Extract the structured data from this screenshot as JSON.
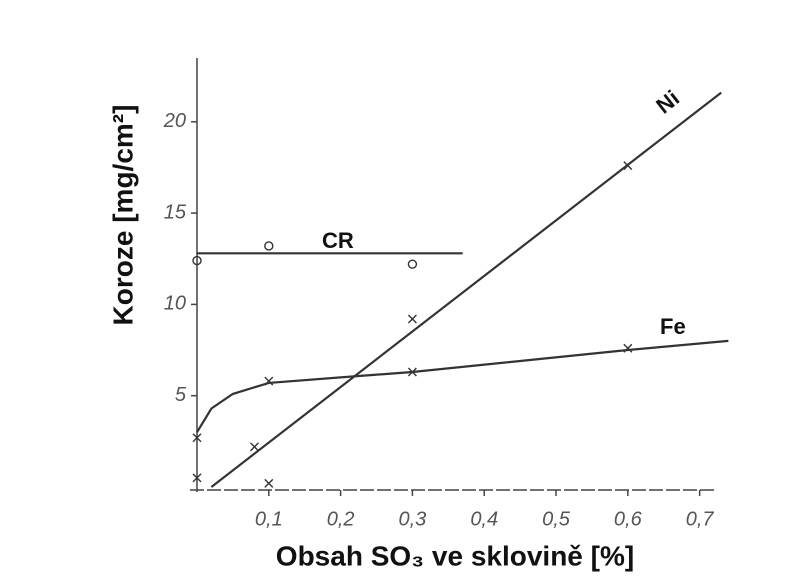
{
  "chart_data": {
    "type": "line",
    "xlabel": "Obsah SO₃ ve sklovině [%]",
    "ylabel": "Koroze [mg/cm²]",
    "xlim": [
      0,
      0.72
    ],
    "ylim": [
      0,
      23
    ],
    "xticks": [
      {
        "value": 0.1,
        "label": "0,1"
      },
      {
        "value": 0.2,
        "label": "0,2"
      },
      {
        "value": 0.3,
        "label": "0,3"
      },
      {
        "value": 0.4,
        "label": "0,4"
      },
      {
        "value": 0.5,
        "label": "0,5"
      },
      {
        "value": 0.6,
        "label": "0,6"
      },
      {
        "value": 0.7,
        "label": "0,7"
      }
    ],
    "yticks": [
      5,
      10,
      15,
      20
    ],
    "grid": false,
    "series": [
      {
        "name": "CR",
        "color": "#333333",
        "marker": "circle",
        "x": [
          0,
          0.1,
          0.3
        ],
        "values": [
          12.4,
          13.2,
          12.2
        ],
        "curve_x": [
          0,
          0.37
        ],
        "curve_values": [
          12.8,
          12.8
        ]
      },
      {
        "name": "Ni",
        "color": "#333333",
        "marker": "x",
        "x": [
          0,
          0.08,
          0.1,
          0.3,
          0.6
        ],
        "values": [
          0.5,
          2.2,
          0.2,
          9.2,
          17.6
        ],
        "curve_x": [
          0.02,
          0.73
        ],
        "curve_values": [
          0,
          21.6
        ]
      },
      {
        "name": "Fe",
        "color": "#333333",
        "marker": "x",
        "x": [
          0,
          0.1,
          0.3,
          0.6
        ],
        "values": [
          2.7,
          5.8,
          6.3,
          7.6
        ],
        "curve_x": [
          0,
          0.02,
          0.05,
          0.1,
          0.2,
          0.3,
          0.45,
          0.6,
          0.74
        ],
        "curve_values": [
          3.0,
          4.3,
          5.1,
          5.7,
          6.0,
          6.3,
          6.9,
          7.5,
          8.0
        ]
      }
    ]
  }
}
